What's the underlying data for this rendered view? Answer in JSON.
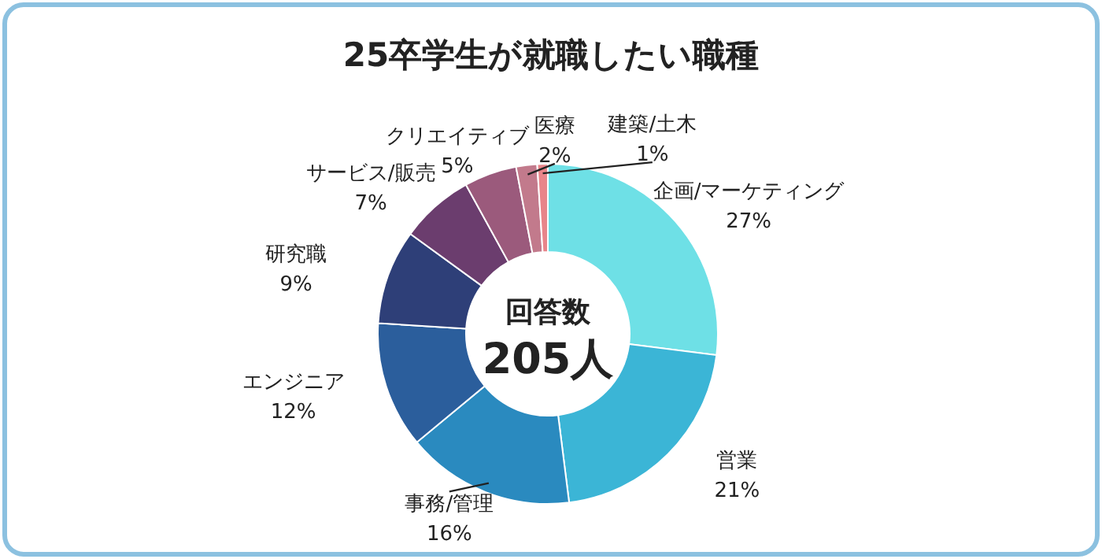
{
  "chart_data": {
    "type": "donut",
    "title": "25卒学生が就職したい職種",
    "categories": [
      "企画/マーケティング",
      "営業",
      "事務/管理",
      "エンジニア",
      "研究職",
      "サービス/販売",
      "クリエイティブ",
      "医療",
      "建築/土木"
    ],
    "values": [
      27,
      21,
      16,
      12,
      9,
      7,
      5,
      2,
      1
    ],
    "colors": [
      "#6ee0e6",
      "#3bb5d6",
      "#2a8abf",
      "#2b5e9c",
      "#2e3f78",
      "#6b3d6e",
      "#9b5a7c",
      "#c27a8c",
      "#e8858a"
    ],
    "value_labels": [
      "27%",
      "21%",
      "16%",
      "12%",
      "9%",
      "7%",
      "5%",
      "2%",
      "1%"
    ],
    "annotations": [
      "回答数",
      "205人"
    ]
  }
}
